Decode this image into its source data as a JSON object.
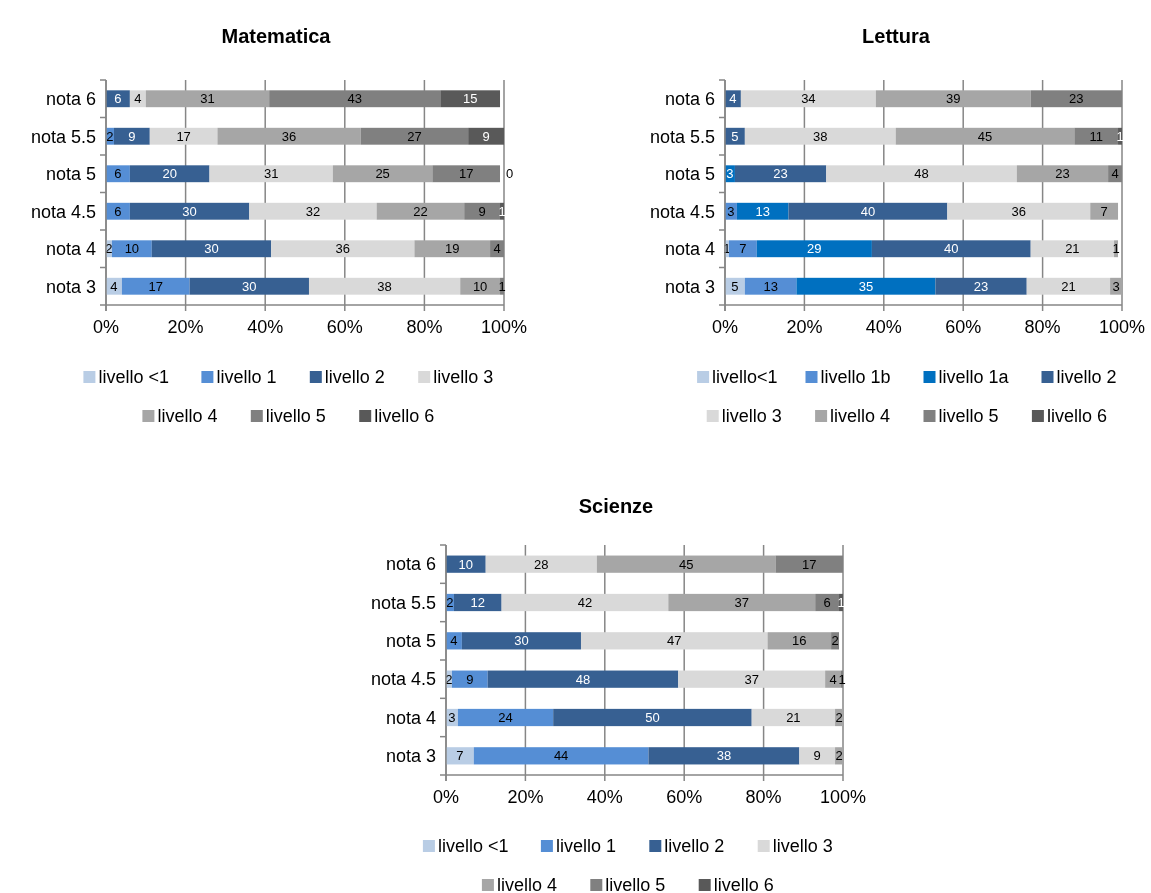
{
  "chart_data": [
    {
      "type": "bar",
      "title": "Matematica",
      "orientation": "horizontal",
      "stacked": true,
      "data_labels": true,
      "grid": "x",
      "legend": "bottom",
      "categories": [
        "nota 6",
        "nota 5.5",
        "nota 5",
        "nota 4.5",
        "nota 4",
        "nota 3"
      ],
      "xlim": [
        0,
        100
      ],
      "xticks": [
        {
          "value": 0,
          "label": "0%"
        },
        {
          "value": 20,
          "label": "20%"
        },
        {
          "value": 40,
          "label": "40%"
        },
        {
          "value": 60,
          "label": "60%"
        },
        {
          "value": 80,
          "label": "80%"
        },
        {
          "value": 100,
          "label": "100%"
        }
      ],
      "series": [
        {
          "name": "livello <1",
          "color": "#b9cde5",
          "values": [
            null,
            null,
            null,
            null,
            1.5,
            4
          ],
          "value_labels": [
            null,
            null,
            null,
            null,
            "2",
            "4"
          ]
        },
        {
          "name": "livello 1",
          "color": "#558ed5",
          "values": [
            null,
            2,
            6,
            6,
            10,
            17
          ]
        },
        {
          "name": "livello 2",
          "color": "#376092",
          "values": [
            6,
            9,
            20,
            30,
            30,
            30
          ]
        },
        {
          "name": "livello 3",
          "color": "#d9d9d9",
          "values": [
            4,
            17,
            31,
            32,
            36,
            38
          ]
        },
        {
          "name": "livello 4",
          "color": "#a6a6a6",
          "values": [
            31,
            36,
            25,
            22,
            19,
            10
          ]
        },
        {
          "name": "livello 5",
          "color": "#808080",
          "values": [
            43,
            27,
            17,
            9,
            3.5,
            1
          ],
          "value_labels": [
            "43",
            "27",
            "17",
            "9",
            "4",
            "1"
          ]
        },
        {
          "name": "livello 6",
          "color": "#595959",
          "values": [
            15,
            9,
            0,
            1,
            null,
            null
          ]
        }
      ]
    },
    {
      "type": "bar",
      "title": "Lettura",
      "orientation": "horizontal",
      "stacked": true,
      "data_labels": true,
      "grid": "x",
      "legend": "bottom",
      "categories": [
        "nota 6",
        "nota 5.5",
        "nota 5",
        "nota 4.5",
        "nota 4",
        "nota 3"
      ],
      "xlim": [
        0,
        100
      ],
      "xticks": [
        {
          "value": 0,
          "label": "0%"
        },
        {
          "value": 20,
          "label": "20%"
        },
        {
          "value": 40,
          "label": "40%"
        },
        {
          "value": 60,
          "label": "60%"
        },
        {
          "value": 80,
          "label": "80%"
        },
        {
          "value": 100,
          "label": "100%"
        }
      ],
      "series": [
        {
          "name": "livello<1",
          "color": "#b9cde5",
          "values": [
            null,
            null,
            null,
            null,
            1,
            5
          ]
        },
        {
          "name": "livello 1b",
          "color": "#558ed5",
          "values": [
            null,
            null,
            null,
            3,
            7,
            13
          ]
        },
        {
          "name": "livello 1a",
          "color": "#0070c0",
          "values": [
            null,
            null,
            2.5,
            13,
            29,
            35
          ],
          "value_labels": [
            null,
            null,
            "3",
            "13",
            "29",
            "35"
          ]
        },
        {
          "name": "livello 2",
          "color": "#376092",
          "values": [
            4,
            5,
            23,
            40,
            40,
            23
          ]
        },
        {
          "name": "livello 3",
          "color": "#d9d9d9",
          "values": [
            34,
            38,
            48,
            36,
            21,
            21
          ]
        },
        {
          "name": "livello 4",
          "color": "#a6a6a6",
          "values": [
            39,
            45,
            23,
            7,
            1,
            3
          ]
        },
        {
          "name": "livello 5",
          "color": "#808080",
          "values": [
            23,
            11,
            3.5,
            null,
            null,
            null
          ],
          "value_labels": [
            "23",
            "11",
            "4",
            null,
            null,
            null
          ]
        },
        {
          "name": "livello 6",
          "color": "#595959",
          "values": [
            null,
            1,
            null,
            null,
            null,
            null
          ]
        }
      ]
    },
    {
      "type": "bar",
      "title": "Scienze",
      "orientation": "horizontal",
      "stacked": true,
      "data_labels": true,
      "grid": "x",
      "legend": "bottom",
      "categories": [
        "nota 6",
        "nota 5.5",
        "nota 5",
        "nota 4.5",
        "nota 4",
        "nota 3"
      ],
      "xlim": [
        0,
        100
      ],
      "xticks": [
        {
          "value": 0,
          "label": "0%"
        },
        {
          "value": 20,
          "label": "20%"
        },
        {
          "value": 40,
          "label": "40%"
        },
        {
          "value": 60,
          "label": "60%"
        },
        {
          "value": 80,
          "label": "80%"
        },
        {
          "value": 100,
          "label": "100%"
        }
      ],
      "series": [
        {
          "name": "livello <1",
          "color": "#b9cde5",
          "values": [
            null,
            null,
            null,
            1.5,
            3,
            7
          ],
          "value_labels": [
            null,
            null,
            null,
            "2",
            "3",
            "7"
          ]
        },
        {
          "name": "livello 1",
          "color": "#558ed5",
          "values": [
            null,
            2,
            4,
            9,
            24,
            44
          ]
        },
        {
          "name": "livello 2",
          "color": "#376092",
          "values": [
            10,
            12,
            30,
            48,
            50,
            38
          ]
        },
        {
          "name": "livello 3",
          "color": "#d9d9d9",
          "values": [
            28,
            42,
            47,
            37,
            21,
            9
          ]
        },
        {
          "name": "livello 4",
          "color": "#a6a6a6",
          "values": [
            45,
            37,
            16,
            4,
            2,
            2
          ]
        },
        {
          "name": "livello 5",
          "color": "#808080",
          "values": [
            17,
            6,
            2,
            0.5,
            null,
            null
          ],
          "value_labels": [
            "17",
            "6",
            "2",
            "1",
            null,
            null
          ]
        },
        {
          "name": "livello 6",
          "color": "#595959",
          "values": [
            null,
            1,
            null,
            null,
            null,
            null
          ]
        }
      ]
    }
  ]
}
